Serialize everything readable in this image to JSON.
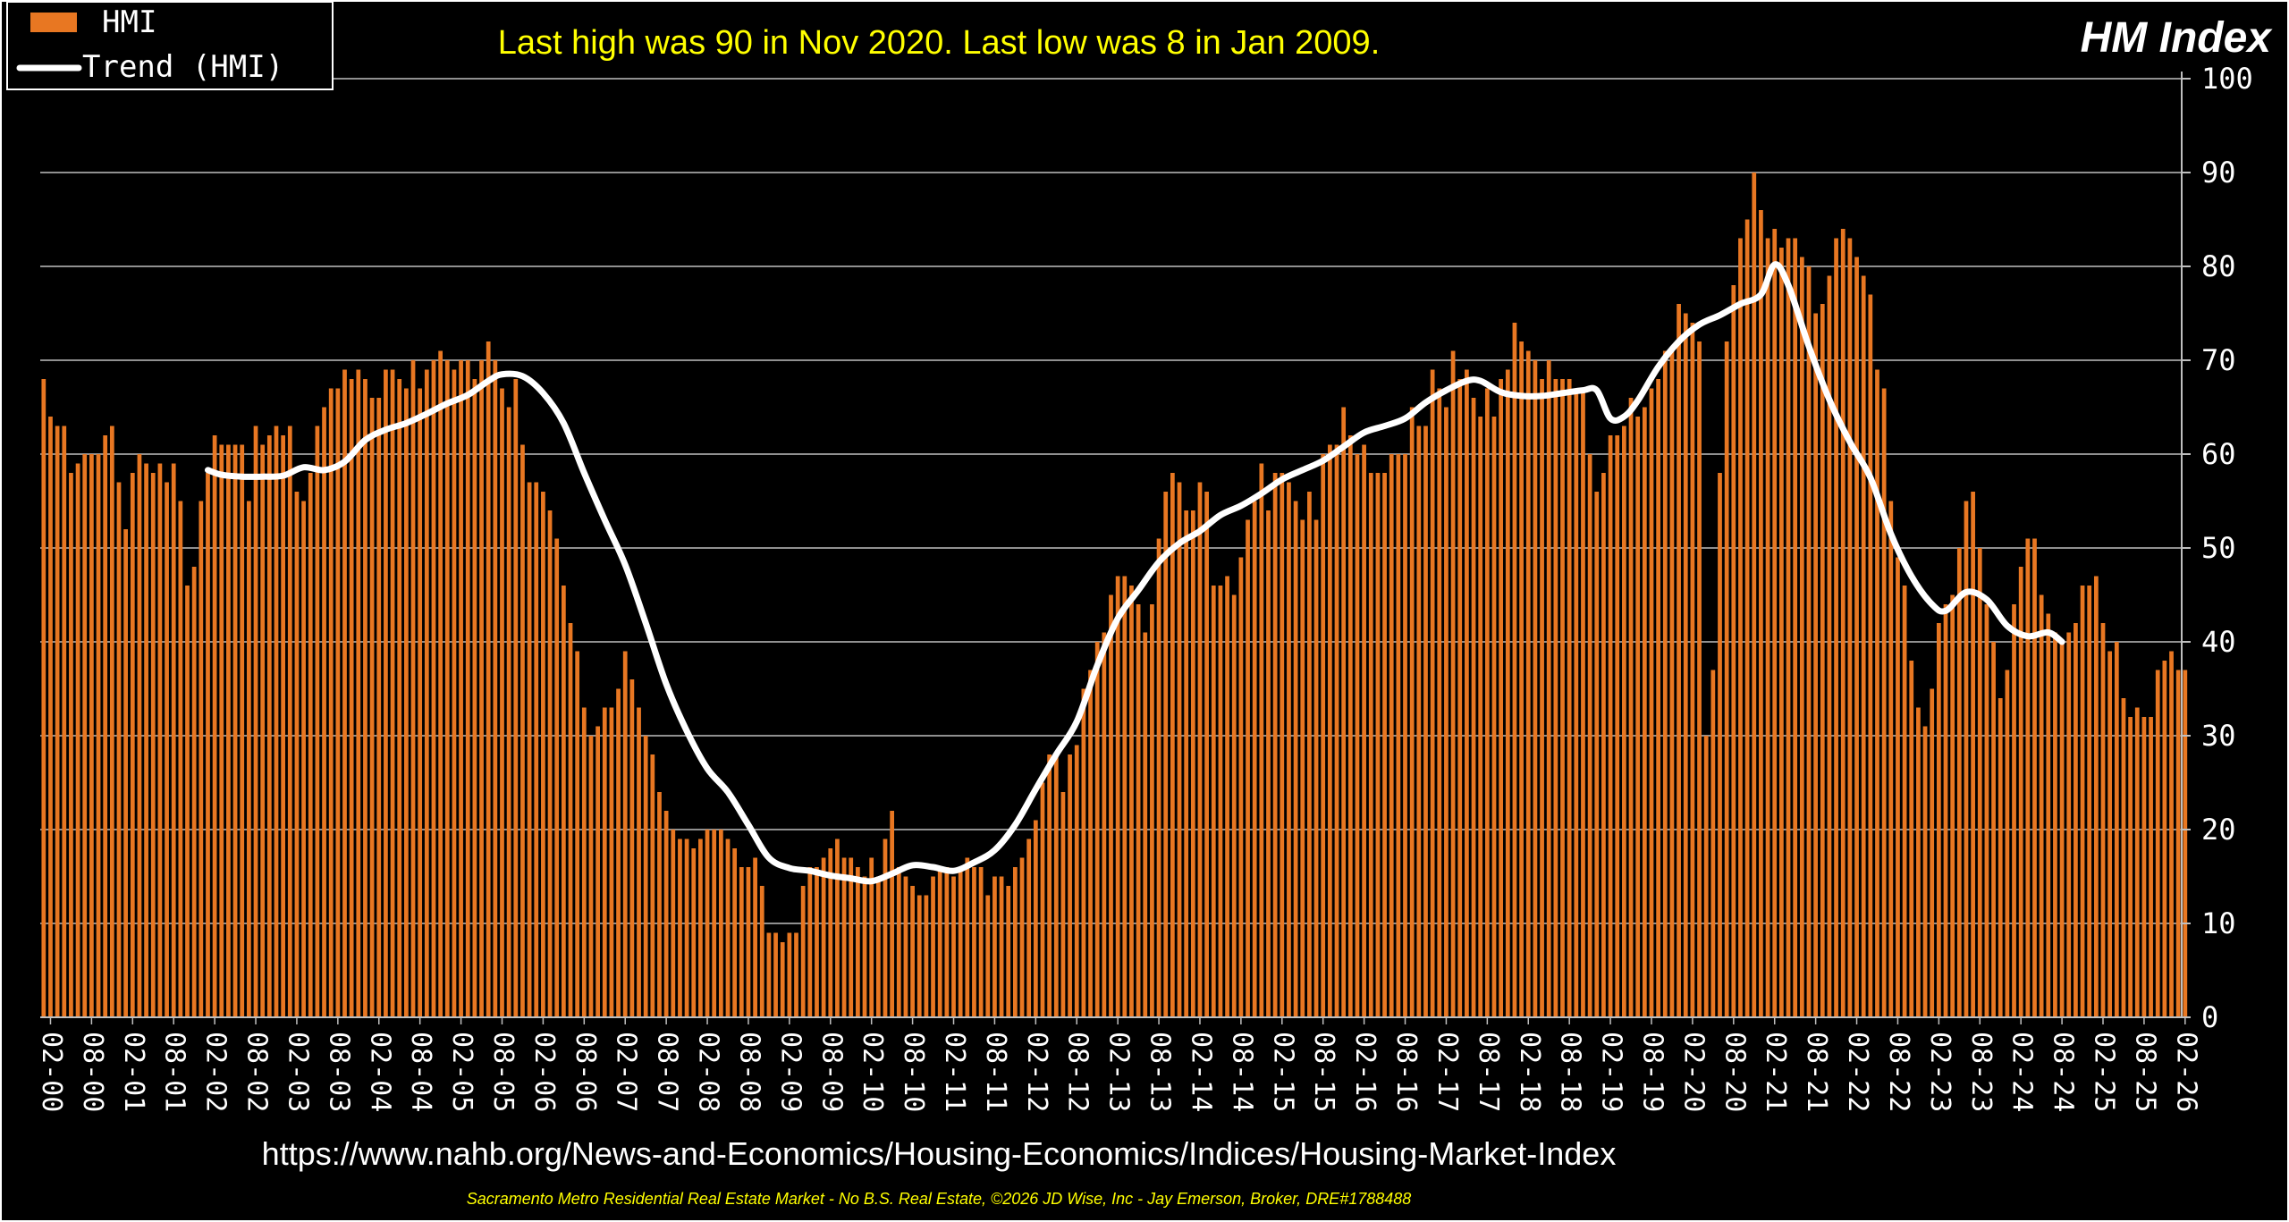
{
  "headline": "Last high was 90 in Nov 2020. Last low was 8 in Jan 2009.",
  "corner_title": "HM Index",
  "source_url": "https://www.nahb.org/News-and-Economics/Housing-Economics/Indices/Housing-Market-Index",
  "footer_credit": "Sacramento Metro Residential Real Estate Market - No B.S. Real Estate, ©2026 JD Wise, Inc - Jay Emerson, Broker, DRE#1788488",
  "colors": {
    "background": "#000000",
    "bar": "#E87722",
    "bar_edge": "#8B3E0A",
    "trend": "#FFFFFF",
    "grid": "#BFBFBF",
    "headline": "#FFFF00",
    "footer": "#FFFF00",
    "text": "#FFFFFF"
  },
  "chart_data": {
    "type": "bar",
    "y_axis_position": "right",
    "ylim": [
      0,
      100
    ],
    "yticks": [
      0,
      10,
      20,
      30,
      40,
      50,
      60,
      70,
      80,
      90,
      100
    ],
    "grid": true,
    "legend_position": "top-left",
    "legend": [
      {
        "label": "HMI",
        "kind": "bar"
      },
      {
        "label": "Trend (HMI)",
        "kind": "line"
      }
    ],
    "x_start": "2000-01",
    "x_end": "2026-01",
    "xtick_labels": [
      "02-00",
      "08-00",
      "02-01",
      "08-01",
      "02-02",
      "08-02",
      "02-03",
      "08-03",
      "02-04",
      "08-04",
      "02-05",
      "08-05",
      "02-06",
      "08-06",
      "02-07",
      "08-07",
      "02-08",
      "08-08",
      "02-09",
      "08-09",
      "02-10",
      "08-10",
      "02-11",
      "08-11",
      "02-12",
      "08-12",
      "02-13",
      "08-13",
      "02-14",
      "08-14",
      "02-15",
      "08-15",
      "02-16",
      "08-16",
      "02-17",
      "08-17",
      "02-18",
      "08-18",
      "02-19",
      "08-19",
      "02-20",
      "08-20",
      "02-21",
      "08-21",
      "02-22",
      "08-22",
      "02-23",
      "08-23",
      "02-24",
      "08-24",
      "02-25",
      "08-25",
      "02-26"
    ],
    "series": [
      {
        "name": "HMI",
        "type": "bar",
        "values": [
          68,
          64,
          63,
          63,
          58,
          59,
          60,
          60,
          60,
          62,
          63,
          57,
          52,
          58,
          60,
          59,
          58,
          59,
          57,
          59,
          55,
          46,
          48,
          55,
          58,
          62,
          61,
          61,
          61,
          61,
          55,
          63,
          61,
          62,
          63,
          62,
          63,
          56,
          55,
          58,
          63,
          65,
          67,
          67,
          69,
          68,
          69,
          68,
          66,
          66,
          69,
          69,
          68,
          67,
          70,
          67,
          69,
          70,
          71,
          70,
          69,
          70,
          70,
          68,
          70,
          72,
          70,
          67,
          65,
          68,
          61,
          57,
          57,
          56,
          54,
          51,
          46,
          42,
          39,
          33,
          30,
          31,
          33,
          33,
          35,
          39,
          36,
          33,
          30,
          28,
          24,
          22,
          20,
          19,
          19,
          18,
          19,
          20,
          20,
          20,
          19,
          18,
          16,
          16,
          17,
          14,
          9,
          9,
          8,
          9,
          9,
          14,
          16,
          16,
          17,
          18,
          19,
          17,
          17,
          16,
          15,
          17,
          15,
          19,
          22,
          16,
          15,
          14,
          13,
          13,
          15,
          16,
          16,
          15,
          16,
          17,
          16,
          16,
          13,
          15,
          15,
          14,
          16,
          17,
          19,
          21,
          25,
          28,
          28,
          24,
          28,
          29,
          35,
          37,
          40,
          41,
          45,
          47,
          47,
          46,
          44,
          41,
          44,
          51,
          56,
          58,
          57,
          54,
          54,
          57,
          56,
          46,
          46,
          47,
          45,
          49,
          53,
          55,
          59,
          54,
          58,
          58,
          57,
          55,
          53,
          56,
          53,
          60,
          61,
          61,
          65,
          62,
          60,
          61,
          58,
          58,
          58,
          60,
          60,
          60,
          65,
          63,
          63,
          69,
          67,
          65,
          71,
          68,
          69,
          66,
          64,
          67,
          64,
          68,
          69,
          74,
          72,
          71,
          70,
          68,
          70,
          68,
          68,
          68,
          67,
          67,
          60,
          56,
          58,
          62,
          62,
          63,
          66,
          64,
          65,
          67,
          68,
          71,
          71,
          76,
          75,
          74,
          72,
          30,
          37,
          58,
          72,
          78,
          83,
          85,
          90,
          86,
          83,
          84,
          82,
          83,
          83,
          81,
          80,
          75,
          76,
          79,
          83,
          84,
          83,
          81,
          79,
          77,
          69,
          67,
          55,
          49,
          46,
          38,
          33,
          31,
          35,
          42,
          44,
          45,
          50,
          55,
          56,
          50,
          44,
          40,
          34,
          37,
          44,
          48,
          51,
          51,
          45,
          43,
          41,
          40,
          41,
          42,
          46,
          46,
          47,
          42,
          39,
          40,
          34,
          32,
          33,
          32,
          32,
          37,
          38,
          39,
          37,
          37
        ]
      },
      {
        "name": "Trend (HMI)",
        "type": "line",
        "start_month": "2002-01",
        "points": [
          [
            "2002-01",
            58.3
          ],
          [
            "2002-03",
            57.8
          ],
          [
            "2002-06",
            57.6
          ],
          [
            "2002-09",
            57.6
          ],
          [
            "2002-12",
            57.7
          ],
          [
            "2003-03",
            58.6
          ],
          [
            "2003-06",
            58.3
          ],
          [
            "2003-09",
            59.2
          ],
          [
            "2003-12",
            61.5
          ],
          [
            "2004-03",
            62.6
          ],
          [
            "2004-06",
            63.3
          ],
          [
            "2004-09",
            64.3
          ],
          [
            "2004-12",
            65.4
          ],
          [
            "2005-03",
            66.3
          ],
          [
            "2005-06",
            67.8
          ],
          [
            "2005-08",
            68.5
          ],
          [
            "2005-11",
            68.3
          ],
          [
            "2006-02",
            66.5
          ],
          [
            "2006-05",
            63.3
          ],
          [
            "2006-08",
            58.0
          ],
          [
            "2006-11",
            53.0
          ],
          [
            "2007-02",
            48.2
          ],
          [
            "2007-05",
            42.0
          ],
          [
            "2007-08",
            35.5
          ],
          [
            "2007-11",
            30.5
          ],
          [
            "2008-02",
            26.5
          ],
          [
            "2008-05",
            24.0
          ],
          [
            "2008-08",
            20.5
          ],
          [
            "2008-11",
            17.0
          ],
          [
            "2009-02",
            15.9
          ],
          [
            "2009-05",
            15.6
          ],
          [
            "2009-08",
            15.1
          ],
          [
            "2009-11",
            14.8
          ],
          [
            "2010-02",
            14.5
          ],
          [
            "2010-05",
            15.3
          ],
          [
            "2010-08",
            16.2
          ],
          [
            "2010-11",
            16.0
          ],
          [
            "2011-02",
            15.6
          ],
          [
            "2011-05",
            16.5
          ],
          [
            "2011-08",
            17.8
          ],
          [
            "2011-11",
            20.5
          ],
          [
            "2012-02",
            24.3
          ],
          [
            "2012-05",
            28.0
          ],
          [
            "2012-08",
            31.5
          ],
          [
            "2012-11",
            37.5
          ],
          [
            "2013-02",
            42.5
          ],
          [
            "2013-05",
            45.5
          ],
          [
            "2013-08",
            48.5
          ],
          [
            "2013-11",
            50.5
          ],
          [
            "2014-02",
            51.8
          ],
          [
            "2014-05",
            53.5
          ],
          [
            "2014-08",
            54.5
          ],
          [
            "2014-11",
            55.8
          ],
          [
            "2015-02",
            57.3
          ],
          [
            "2015-05",
            58.3
          ],
          [
            "2015-08",
            59.3
          ],
          [
            "2015-11",
            60.8
          ],
          [
            "2016-02",
            62.3
          ],
          [
            "2016-05",
            63.0
          ],
          [
            "2016-08",
            63.8
          ],
          [
            "2016-11",
            65.5
          ],
          [
            "2017-02",
            66.8
          ],
          [
            "2017-05",
            67.8
          ],
          [
            "2017-07",
            67.8
          ],
          [
            "2017-10",
            66.6
          ],
          [
            "2018-01",
            66.2
          ],
          [
            "2018-04",
            66.2
          ],
          [
            "2018-07",
            66.5
          ],
          [
            "2018-10",
            66.8
          ],
          [
            "2018-12",
            66.8
          ],
          [
            "2019-02",
            63.8
          ],
          [
            "2019-04",
            64.0
          ],
          [
            "2019-06",
            65.7
          ],
          [
            "2019-09",
            69.3
          ],
          [
            "2019-12",
            72.0
          ],
          [
            "2020-03",
            73.8
          ],
          [
            "2020-06",
            74.8
          ],
          [
            "2020-09",
            76.0
          ],
          [
            "2020-12",
            77.0
          ],
          [
            "2021-02",
            80.2
          ],
          [
            "2021-04",
            78.0
          ],
          [
            "2021-07",
            71.5
          ],
          [
            "2021-10",
            65.8
          ],
          [
            "2022-01",
            61.3
          ],
          [
            "2022-04",
            57.5
          ],
          [
            "2022-07",
            51.5
          ],
          [
            "2022-10",
            47.0
          ],
          [
            "2023-01",
            44.0
          ],
          [
            "2023-03",
            43.3
          ],
          [
            "2023-06",
            45.3
          ],
          [
            "2023-09",
            44.5
          ],
          [
            "2023-12",
            41.7
          ],
          [
            "2024-03",
            40.6
          ],
          [
            "2024-06",
            41.0
          ],
          [
            "2024-08",
            40.0
          ]
        ]
      }
    ]
  }
}
